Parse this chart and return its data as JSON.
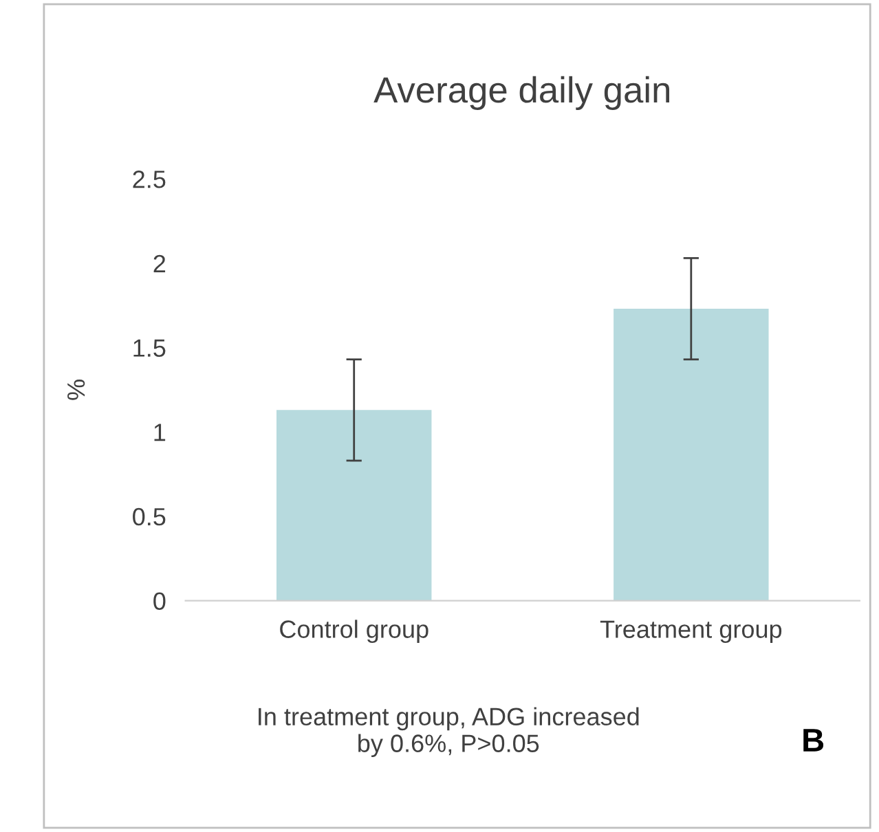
{
  "chart_data": {
    "type": "bar",
    "title": "Average daily gain",
    "ylabel": "%",
    "categories": [
      "Control group",
      "Treatment group"
    ],
    "values": [
      1.13,
      1.73
    ],
    "errors": [
      0.3,
      0.3
    ],
    "color": "#b7dade",
    "ylim": [
      0,
      2.5
    ],
    "yticks": [
      0,
      0.5,
      1,
      1.5,
      2,
      2.5
    ],
    "grid": false,
    "annotations": [
      "In treatment group, ADG increased\nby 0.6%, P>0.05",
      "B"
    ]
  }
}
